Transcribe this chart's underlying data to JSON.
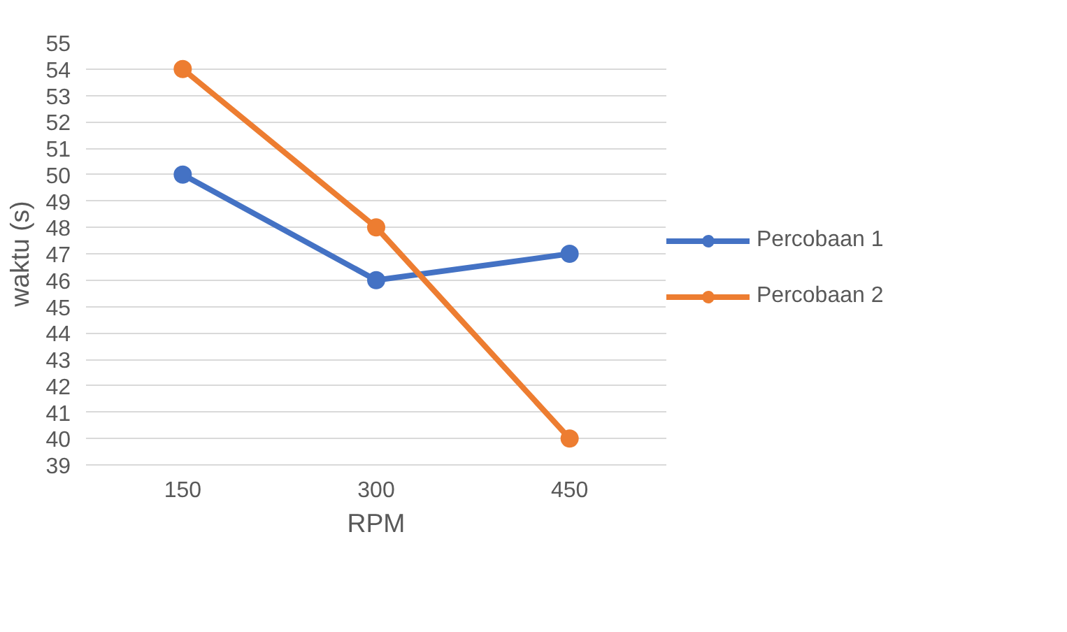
{
  "chart_data": {
    "type": "line",
    "xlabel": "RPM",
    "ylabel": "waktu (s)",
    "categories": [
      "150",
      "300",
      "450"
    ],
    "series": [
      {
        "name": "Percobaan 1",
        "color": "#4472c4",
        "values": [
          50,
          46,
          47
        ]
      },
      {
        "name": "Percobaan 2",
        "color": "#ed7d31",
        "values": [
          54,
          48,
          40
        ]
      }
    ],
    "ylim": [
      39,
      55
    ],
    "yticks": [
      39,
      40,
      41,
      42,
      43,
      44,
      45,
      46,
      47,
      48,
      49,
      50,
      51,
      52,
      53,
      54,
      55
    ],
    "grid": "y",
    "legend": "right",
    "marker": "circle"
  }
}
